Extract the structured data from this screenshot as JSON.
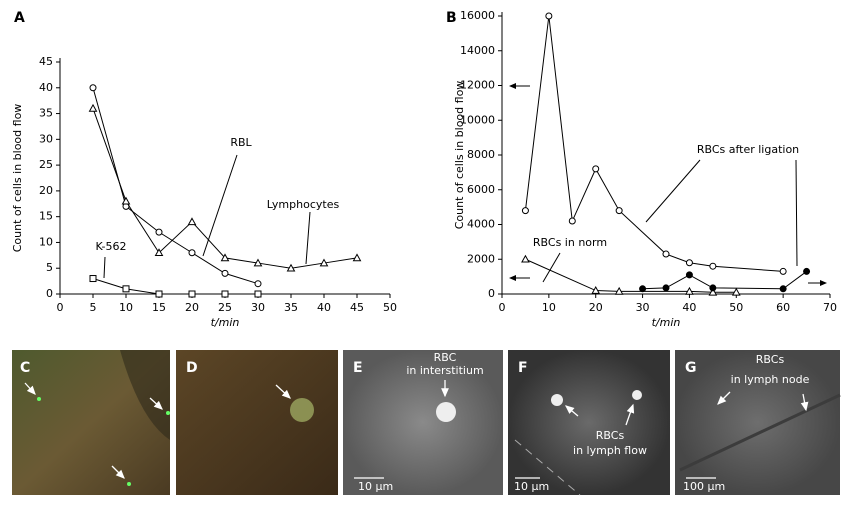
{
  "chart_data": [
    {
      "type": "line",
      "label": "A",
      "xlabel": "t/min",
      "ylabel": "Count of cells in blood flow",
      "xlim": [
        0,
        50
      ],
      "xticks": [
        0,
        5,
        10,
        15,
        20,
        25,
        30,
        35,
        40,
        45,
        50
      ],
      "ylim": [
        0,
        45
      ],
      "yticks": [
        0,
        5,
        10,
        15,
        20,
        25,
        30,
        35,
        40,
        45
      ],
      "color": "#000000",
      "series": [
        {
          "name": "RBL",
          "marker": "circle",
          "x": [
            5,
            10,
            15,
            20,
            25,
            30
          ],
          "values": [
            40,
            17,
            12,
            8,
            4,
            2
          ]
        },
        {
          "name": "Lymphocytes",
          "marker": "triangle",
          "x": [
            5,
            10,
            15,
            20,
            25,
            30,
            35,
            40,
            45
          ],
          "values": [
            36,
            18,
            8,
            14,
            7,
            6,
            5,
            6,
            7
          ]
        },
        {
          "name": "K-562",
          "marker": "square",
          "x": [
            5,
            10,
            15,
            20,
            25,
            30
          ],
          "values": [
            3,
            1,
            0,
            0,
            0,
            0
          ]
        }
      ]
    },
    {
      "type": "line",
      "label": "B",
      "xlabel": "t/min",
      "ylabel": "Count of cells in blood flow",
      "xlim": [
        0,
        70
      ],
      "xticks": [
        0,
        10,
        20,
        30,
        40,
        50,
        60,
        70
      ],
      "ylim": [
        0,
        16000
      ],
      "yticks": [
        0,
        2000,
        4000,
        6000,
        8000,
        10000,
        12000,
        14000,
        16000
      ],
      "color": "#000000",
      "series": [
        {
          "name": "RBCs after ligation",
          "marker": "circle",
          "x": [
            5,
            10,
            15,
            20,
            25,
            35,
            40,
            45,
            60
          ],
          "values": [
            4800,
            16000,
            4200,
            7200,
            4800,
            2300,
            1800,
            1600,
            1300
          ]
        },
        {
          "name": "RBCs in norm",
          "marker": "triangle",
          "x": [
            5,
            20,
            25,
            40,
            45,
            50
          ],
          "values": [
            2000,
            200,
            150,
            150,
            100,
            100
          ]
        },
        {
          "marker": "filled-circle",
          "x": [
            30,
            35,
            40,
            45,
            60,
            65
          ],
          "values": [
            300,
            350,
            1100,
            350,
            300,
            1300
          ]
        }
      ]
    }
  ],
  "panels": [
    {
      "label": "C"
    },
    {
      "label": "D"
    },
    {
      "label": "E",
      "caption": [
        "RBC",
        "in interstitium"
      ],
      "scale": "10 μm"
    },
    {
      "label": "F",
      "caption": [
        "RBCs",
        "in lymph flow"
      ],
      "scale": "10 μm"
    },
    {
      "label": "G",
      "caption": [
        "RBCs",
        "in lymph node"
      ],
      "scale": "100 μm"
    }
  ]
}
